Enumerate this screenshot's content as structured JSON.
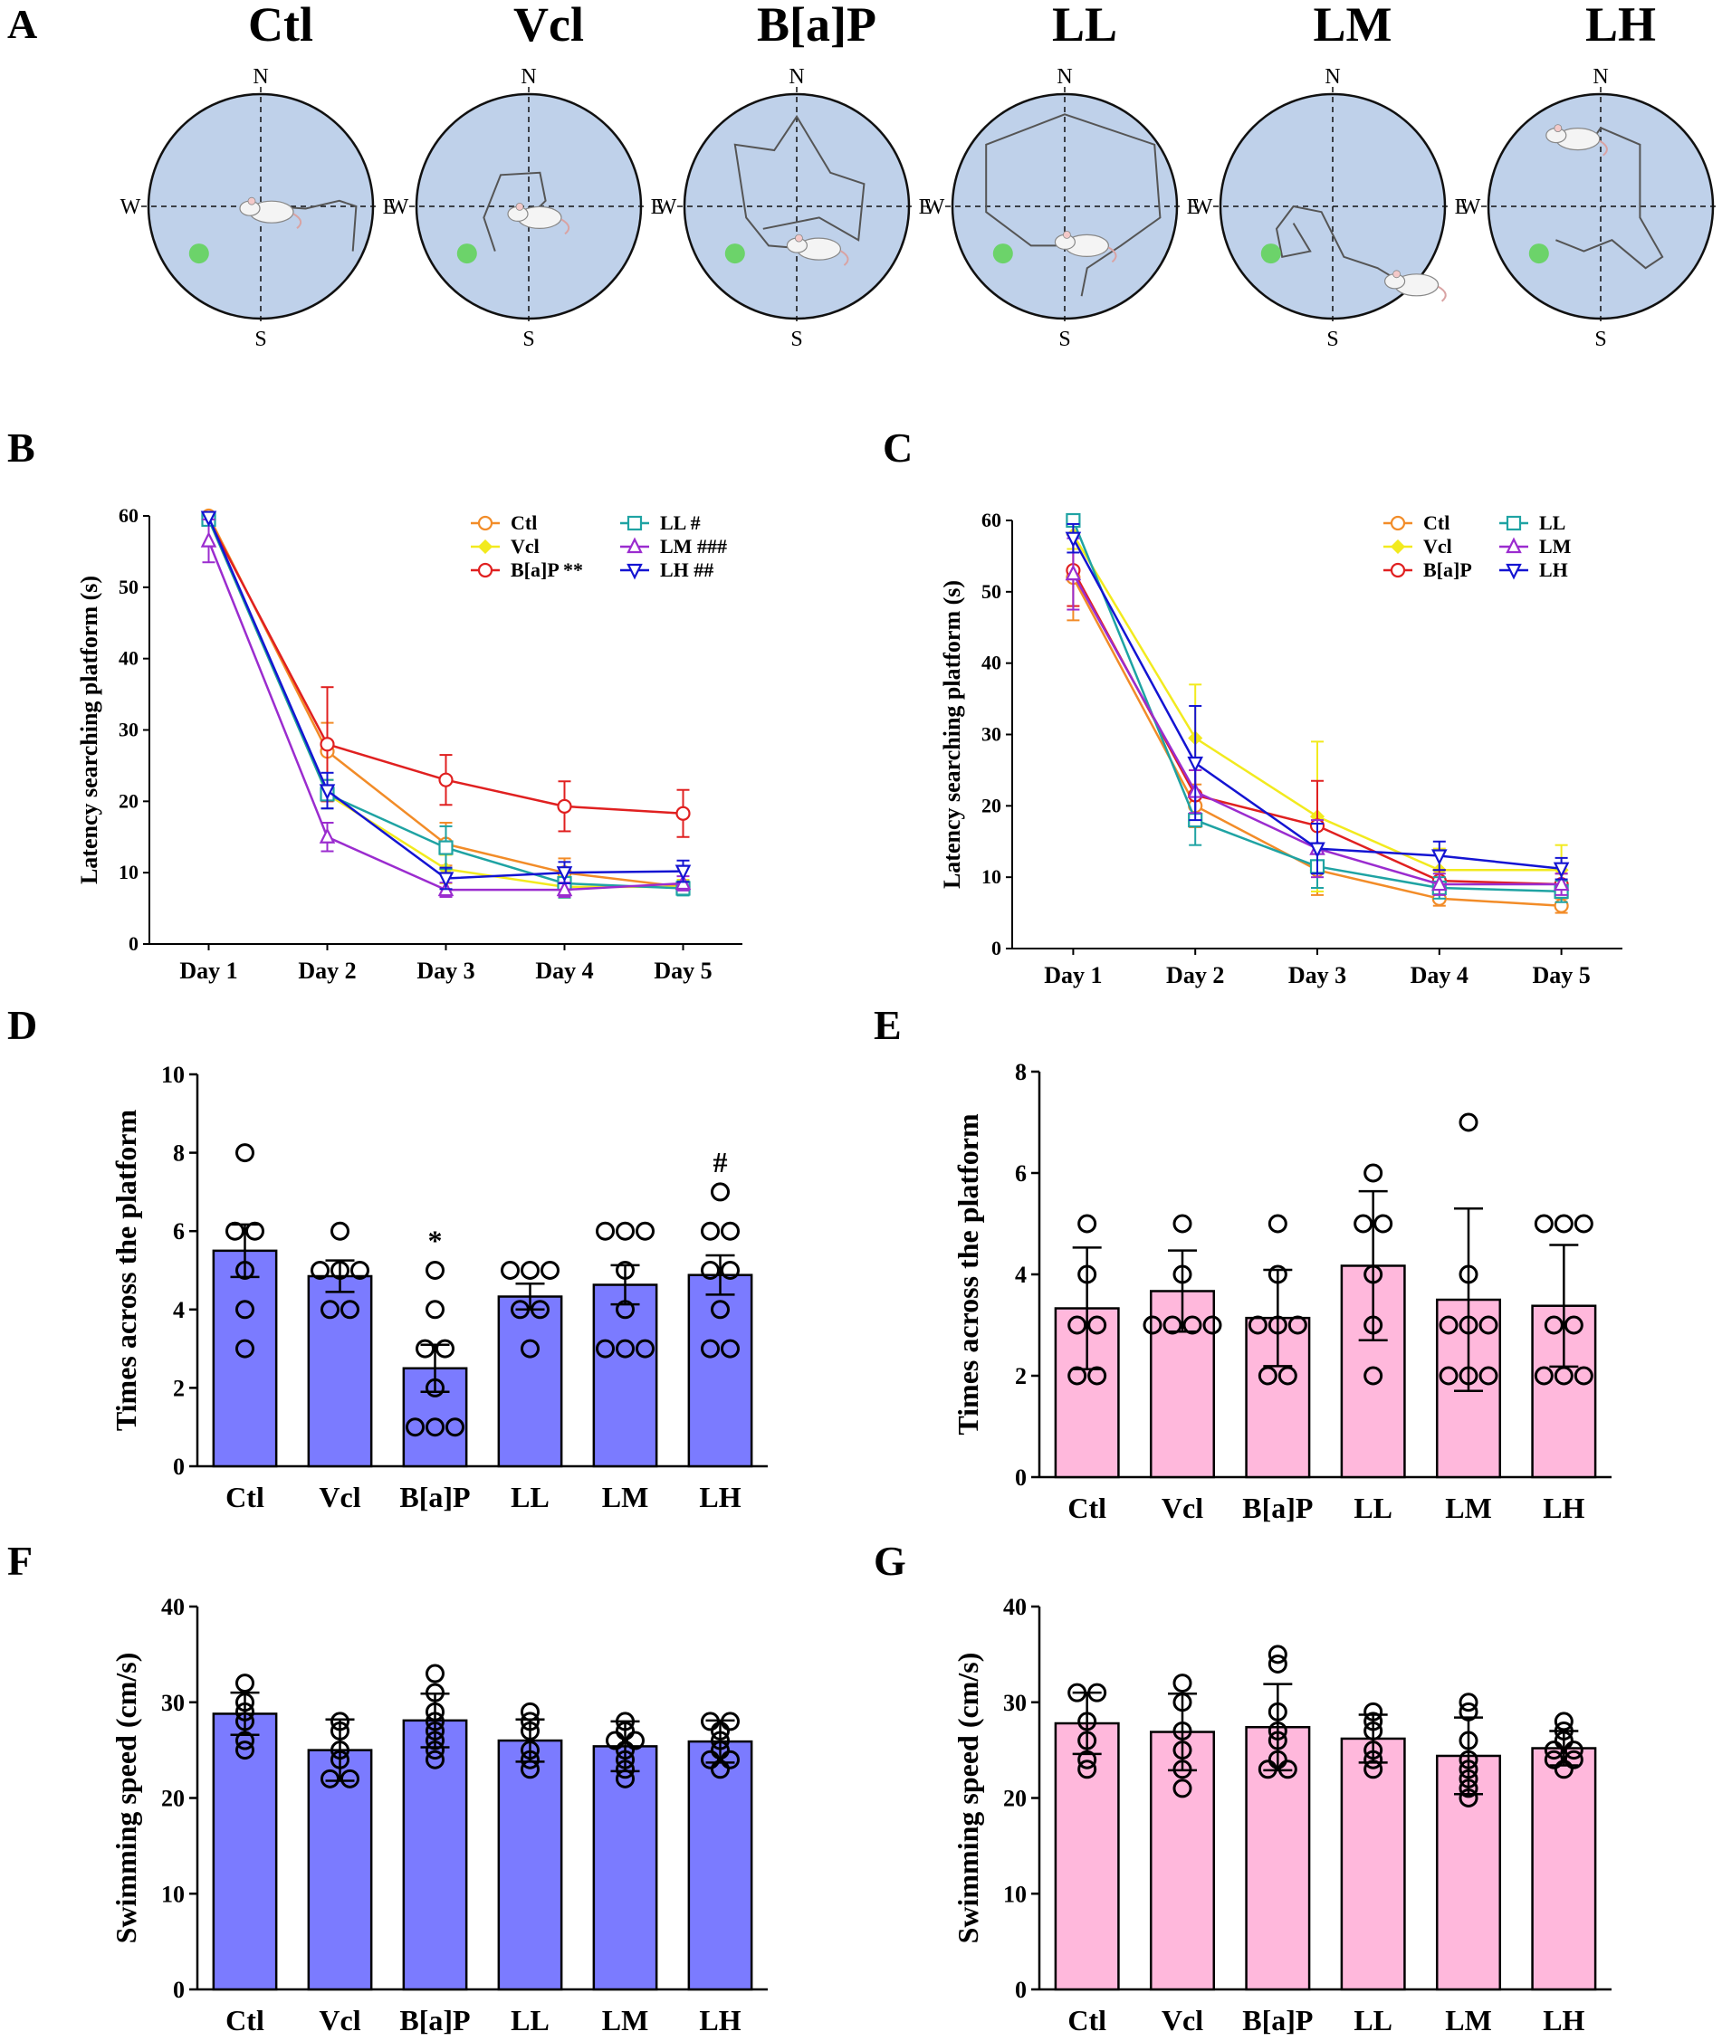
{
  "panel_a": {
    "label": "A",
    "directions": {
      "n": "N",
      "s": "S",
      "e": "E",
      "w": "W"
    },
    "groups": [
      {
        "title": "Ctl",
        "path": [
          [
            0.0,
            0.05
          ],
          [
            0.1,
            0.0
          ],
          [
            0.4,
            0.02
          ],
          [
            0.7,
            -0.05
          ],
          [
            0.85,
            0.0
          ],
          [
            0.82,
            0.4
          ]
        ]
      },
      {
        "title": "Vcl",
        "path": [
          [
            0.0,
            0.1
          ],
          [
            0.15,
            -0.05
          ],
          [
            0.1,
            -0.3
          ],
          [
            -0.25,
            -0.28
          ],
          [
            -0.4,
            0.1
          ],
          [
            -0.3,
            0.4
          ]
        ]
      },
      {
        "title": "B[a]P",
        "path": [
          [
            0.1,
            0.38
          ],
          [
            -0.25,
            0.35
          ],
          [
            -0.45,
            0.1
          ],
          [
            -0.55,
            -0.55
          ],
          [
            -0.2,
            -0.5
          ],
          [
            0.0,
            -0.8
          ],
          [
            0.3,
            -0.3
          ],
          [
            0.6,
            -0.2
          ],
          [
            0.55,
            0.3
          ],
          [
            0.2,
            0.1
          ],
          [
            -0.3,
            0.2
          ]
        ]
      },
      {
        "title": "LL",
        "path": [
          [
            0.1,
            0.35
          ],
          [
            -0.3,
            0.35
          ],
          [
            -0.7,
            0.05
          ],
          [
            -0.7,
            -0.55
          ],
          [
            0.0,
            -0.82
          ],
          [
            0.8,
            -0.55
          ],
          [
            0.85,
            0.1
          ],
          [
            0.5,
            0.35
          ],
          [
            0.2,
            0.55
          ],
          [
            0.15,
            0.8
          ]
        ]
      },
      {
        "title": "LM",
        "path": [
          [
            0.65,
            0.7
          ],
          [
            0.4,
            0.55
          ],
          [
            0.1,
            0.45
          ],
          [
            -0.1,
            0.05
          ],
          [
            -0.35,
            0.0
          ],
          [
            -0.5,
            0.2
          ],
          [
            -0.45,
            0.45
          ],
          [
            -0.2,
            0.4
          ],
          [
            -0.35,
            0.15
          ]
        ]
      },
      {
        "title": "LH",
        "path": [
          [
            -0.3,
            -0.6
          ],
          [
            -0.1,
            -0.55
          ],
          [
            0.0,
            -0.7
          ],
          [
            0.35,
            -0.55
          ],
          [
            0.35,
            0.1
          ],
          [
            0.55,
            0.45
          ],
          [
            0.4,
            0.55
          ],
          [
            0.1,
            0.3
          ],
          [
            -0.15,
            0.4
          ],
          [
            -0.4,
            0.3
          ]
        ]
      }
    ]
  },
  "chart_data": [
    {
      "panel": "B",
      "type": "line",
      "ylabel": "Latency searching platform (s)",
      "ylim": [
        0,
        60
      ],
      "yticks": [
        0,
        10,
        20,
        30,
        40,
        50,
        60
      ],
      "categories": [
        "Day 1",
        "Day 2",
        "Day 3",
        "Day 4",
        "Day 5"
      ],
      "series": [
        {
          "name": "Ctl",
          "tag": "",
          "marker": "circle",
          "color": "#f28c28",
          "values": [
            60,
            27,
            14,
            10,
            8
          ],
          "err": [
            0,
            4,
            3,
            2,
            1
          ]
        },
        {
          "name": "Vcl",
          "tag": "",
          "marker": "diamond",
          "color": "#f2ea1e",
          "values": [
            59.5,
            21,
            10.5,
            8,
            8
          ],
          "err": [
            0,
            2,
            2,
            1.5,
            1
          ]
        },
        {
          "name": "B[a]P",
          "tag": "**",
          "marker": "circle",
          "color": "#e02020",
          "values": [
            59.5,
            28,
            23,
            19.3,
            18.3
          ],
          "err": [
            0,
            8,
            3.5,
            3.5,
            3.3
          ]
        },
        {
          "name": "LL",
          "tag": "#",
          "marker": "square",
          "color": "#1fa3a3",
          "values": [
            59.5,
            21,
            13.5,
            8.5,
            7.8
          ],
          "err": [
            0,
            2,
            3,
            2,
            1
          ]
        },
        {
          "name": "LM",
          "tag": "###",
          "marker": "triangle-up",
          "color": "#9b2ccf",
          "values": [
            56.5,
            15,
            7.6,
            7.6,
            8.5
          ],
          "err": [
            3,
            2,
            1,
            1,
            1
          ]
        },
        {
          "name": "LH",
          "tag": "##",
          "marker": "triangle-down",
          "color": "#1414d2",
          "values": [
            59.8,
            21.5,
            9.2,
            10,
            10.2
          ],
          "err": [
            0,
            2.5,
            1.5,
            1.5,
            1.5
          ]
        }
      ]
    },
    {
      "panel": "C",
      "type": "line",
      "ylabel": "Latency searching platform (s)",
      "ylim": [
        0,
        60
      ],
      "yticks": [
        0,
        10,
        20,
        30,
        40,
        50,
        60
      ],
      "categories": [
        "Day 1",
        "Day 2",
        "Day 3",
        "Day 4",
        "Day 5"
      ],
      "series": [
        {
          "name": "Ctl",
          "tag": "",
          "marker": "circle",
          "color": "#f28c28",
          "values": [
            52,
            20,
            11,
            7,
            6
          ],
          "err": [
            6,
            3,
            3.5,
            1,
            1
          ]
        },
        {
          "name": "Vcl",
          "tag": "",
          "marker": "diamond",
          "color": "#f2ea1e",
          "values": [
            58,
            29.5,
            18.5,
            11,
            11
          ],
          "err": [
            2,
            7.5,
            10.5,
            3,
            3.5
          ]
        },
        {
          "name": "B[a]P",
          "tag": "",
          "marker": "circle",
          "color": "#e02020",
          "values": [
            53,
            21.5,
            17.2,
            9.5,
            9
          ],
          "err": [
            5,
            3.5,
            6.3,
            1.5,
            1.5
          ]
        },
        {
          "name": "LL",
          "tag": "",
          "marker": "square",
          "color": "#1fa3a3",
          "values": [
            60,
            18,
            11.5,
            8.5,
            8
          ],
          "err": [
            0,
            3.5,
            3,
            1.5,
            1.5
          ]
        },
        {
          "name": "LM",
          "tag": "",
          "marker": "triangle-up",
          "color": "#9b2ccf",
          "values": [
            52.5,
            22,
            14,
            9,
            9
          ],
          "err": [
            5,
            3,
            4,
            1.5,
            1.5
          ]
        },
        {
          "name": "LH",
          "tag": "",
          "marker": "triangle-down",
          "color": "#1414d2",
          "values": [
            57.5,
            26,
            14,
            13,
            11.2
          ],
          "err": [
            2,
            8,
            3.5,
            2,
            1.5
          ]
        }
      ]
    },
    {
      "panel": "D",
      "type": "bar",
      "ylabel": "Times across the platform",
      "ylim": [
        0,
        10
      ],
      "yticks": [
        0,
        2,
        4,
        6,
        8,
        10
      ],
      "categories": [
        "Ctl",
        "Vcl",
        "B[a]P",
        "LL",
        "LM",
        "LH"
      ],
      "values": [
        5.5,
        4.85,
        2.5,
        4.33,
        4.63,
        4.88
      ],
      "err": [
        0.67,
        0.4,
        0.6,
        0.33,
        0.5,
        0.5
      ],
      "points": [
        [
          8,
          6,
          6,
          5,
          4,
          3
        ],
        [
          6,
          5,
          5,
          5,
          4,
          4
        ],
        [
          5,
          4,
          3,
          3,
          2,
          1,
          1,
          1
        ],
        [
          5,
          5,
          5,
          4,
          4,
          3
        ],
        [
          6,
          6,
          6,
          5,
          4,
          3,
          3,
          3
        ],
        [
          7,
          6,
          6,
          5,
          5,
          4,
          3,
          3
        ]
      ],
      "annotations": [
        "",
        "",
        "*",
        "",
        "",
        "#"
      ],
      "bar_color": "#7b7bff"
    },
    {
      "panel": "E",
      "type": "bar",
      "ylabel": "Times across the platform",
      "ylim": [
        0,
        8
      ],
      "yticks": [
        0,
        2,
        4,
        6,
        8
      ],
      "categories": [
        "Ctl",
        "Vcl",
        "B[a]P",
        "LL",
        "LM",
        "LH"
      ],
      "values": [
        3.33,
        3.67,
        3.14,
        4.17,
        3.5,
        3.38
      ],
      "err": [
        1.2,
        0.8,
        0.95,
        1.47,
        1.8,
        1.2
      ],
      "points": [
        [
          5,
          4,
          3,
          3,
          2,
          2
        ],
        [
          5,
          4,
          3,
          3,
          3,
          3
        ],
        [
          5,
          4,
          3,
          3,
          3,
          2,
          2
        ],
        [
          6,
          5,
          5,
          4,
          3,
          2
        ],
        [
          7,
          4,
          3,
          3,
          3,
          2,
          2,
          2
        ],
        [
          5,
          5,
          5,
          3,
          3,
          2,
          2,
          2
        ]
      ],
      "annotations": [
        "",
        "",
        "",
        "",
        "",
        ""
      ],
      "bar_color": "#ffb8dc"
    },
    {
      "panel": "F",
      "type": "bar",
      "ylabel": "Swimming speed (cm/s)",
      "ylim": [
        0,
        40
      ],
      "yticks": [
        0,
        10,
        20,
        30,
        40
      ],
      "categories": [
        "Ctl",
        "Vcl",
        "B[a]P",
        "LL",
        "LM",
        "LH"
      ],
      "values": [
        28.8,
        25,
        28.1,
        26,
        25.4,
        25.9
      ],
      "err": [
        2.2,
        3.2,
        2.8,
        2.2,
        2.6,
        2.2
      ],
      "points": [
        [
          32,
          30,
          29,
          28,
          26,
          25
        ],
        [
          28,
          27,
          25,
          24,
          22,
          22
        ],
        [
          33,
          31,
          29,
          28,
          27,
          26,
          25,
          24
        ],
        [
          29,
          28,
          27,
          25,
          24,
          23
        ],
        [
          28,
          27,
          26,
          26,
          25,
          24,
          23,
          22
        ],
        [
          28,
          28,
          27,
          26,
          25,
          24,
          23,
          24
        ]
      ],
      "annotations": [
        "",
        "",
        "",
        "",
        "",
        ""
      ],
      "bar_color": "#7b7bff"
    },
    {
      "panel": "G",
      "type": "bar",
      "ylabel": "Swimming speed (cm/s)",
      "ylim": [
        0,
        40
      ],
      "yticks": [
        0,
        10,
        20,
        30,
        40
      ],
      "categories": [
        "Ctl",
        "Vcl",
        "B[a]P",
        "LL",
        "LM",
        "LH"
      ],
      "values": [
        27.8,
        26.9,
        27.4,
        26.2,
        24.4,
        25.2
      ],
      "err": [
        3.2,
        4,
        4.5,
        2.5,
        4,
        1.8
      ],
      "points": [
        [
          31,
          31,
          28,
          26,
          24,
          23
        ],
        [
          32,
          30,
          27,
          25,
          23,
          21
        ],
        [
          35,
          34,
          29,
          27,
          26,
          24,
          23,
          23
        ],
        [
          29,
          28,
          27,
          25,
          24,
          23
        ],
        [
          30,
          29,
          26,
          24,
          23,
          22,
          21,
          20
        ],
        [
          28,
          27,
          26,
          25,
          25,
          24,
          23,
          24
        ]
      ],
      "annotations": [
        "",
        "",
        "",
        "",
        "",
        ""
      ],
      "bar_color": "#ffb8dc"
    }
  ],
  "panel_labels": {
    "b": "B",
    "c": "C",
    "d": "D",
    "e": "E",
    "f": "F",
    "g": "G"
  }
}
